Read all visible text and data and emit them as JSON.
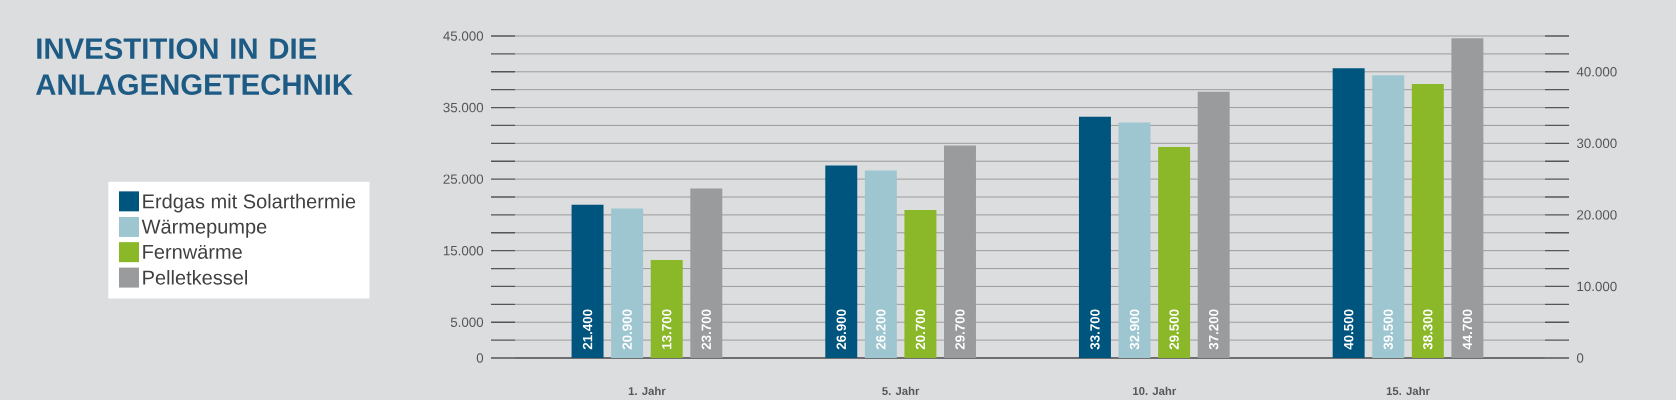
{
  "chart_data": {
    "type": "bar",
    "title": "INVESTITION IN DIE ANLAGENGETECHNIK",
    "categories": [
      "1. Jahr",
      "5. Jahr",
      "10. Jahr",
      "15. Jahr"
    ],
    "series": [
      {
        "name": "Erdgas mit Solarthermie",
        "color": "#00557f",
        "values": [
          21400,
          26900,
          33700,
          40500
        ],
        "value_labels": [
          "21.400",
          "26.900",
          "33.700",
          "40.500"
        ]
      },
      {
        "name": "Wärmepumpe",
        "color": "#9ec6d1",
        "values": [
          20900,
          26200,
          32900,
          39500
        ],
        "value_labels": [
          "20.900",
          "26.200",
          "32.900",
          "39.500"
        ]
      },
      {
        "name": "Fernwärme",
        "color": "#8ab828",
        "values": [
          13700,
          20700,
          29500,
          38300
        ],
        "value_labels": [
          "13.700",
          "20.700",
          "29.500",
          "38.300"
        ]
      },
      {
        "name": "Pelletkessel",
        "color": "#999b9c",
        "values": [
          23700,
          29700,
          37200,
          44700
        ],
        "value_labels": [
          "23.700",
          "29.700",
          "37.200",
          "44.700"
        ]
      }
    ],
    "ylim": [
      0,
      45000
    ],
    "yticks": [
      0,
      {
        "value": 2500,
        "label": null
      },
      {
        "value": 5000,
        "label": "5.000"
      },
      {
        "value": 7500,
        "label": null
      },
      {
        "value": 10000,
        "label": null
      },
      {
        "value": 12500,
        "label": null
      },
      {
        "value": 15000,
        "label": "15.000"
      },
      {
        "value": 17500,
        "label": null
      },
      {
        "value": 20000,
        "label": null
      },
      {
        "value": 22500,
        "label": null
      },
      {
        "value": 25000,
        "label": "25.000"
      },
      {
        "value": 27500,
        "label": null
      },
      {
        "value": 30000,
        "label": null
      },
      {
        "value": 32500,
        "label": null
      },
      {
        "value": 35000,
        "label": "35.000"
      },
      {
        "value": 37500,
        "label": null
      },
      {
        "value": 40000,
        "label": null
      },
      {
        "value": 42500,
        "label": null
      },
      {
        "value": 45000,
        "label": "45.000"
      }
    ],
    "y2lim": [
      0,
      45000
    ],
    "y2ticks": [
      0,
      {
        "value": 2500,
        "label": null
      },
      {
        "value": 5000,
        "label": null
      },
      {
        "value": 7500,
        "label": null
      },
      {
        "value": 10000,
        "label": "10.000"
      },
      {
        "value": 12500,
        "label": null
      },
      {
        "value": 15000,
        "label": null
      },
      {
        "value": 17500,
        "label": null
      },
      {
        "value": 20000,
        "label": "20.000"
      },
      {
        "value": 22500,
        "label": null
      },
      {
        "value": 25000,
        "label": null
      },
      {
        "value": 27500,
        "label": null
      },
      {
        "value": 30000,
        "label": "30.000"
      },
      {
        "value": 32500,
        "label": null
      },
      {
        "value": 35000,
        "label": null
      },
      {
        "value": 37500,
        "label": null
      },
      {
        "value": 40000,
        "label": "40.000"
      },
      {
        "value": 42500,
        "label": null
      },
      {
        "value": 45000,
        "label": null
      }
    ],
    "grid": "y",
    "legend": "left"
  }
}
